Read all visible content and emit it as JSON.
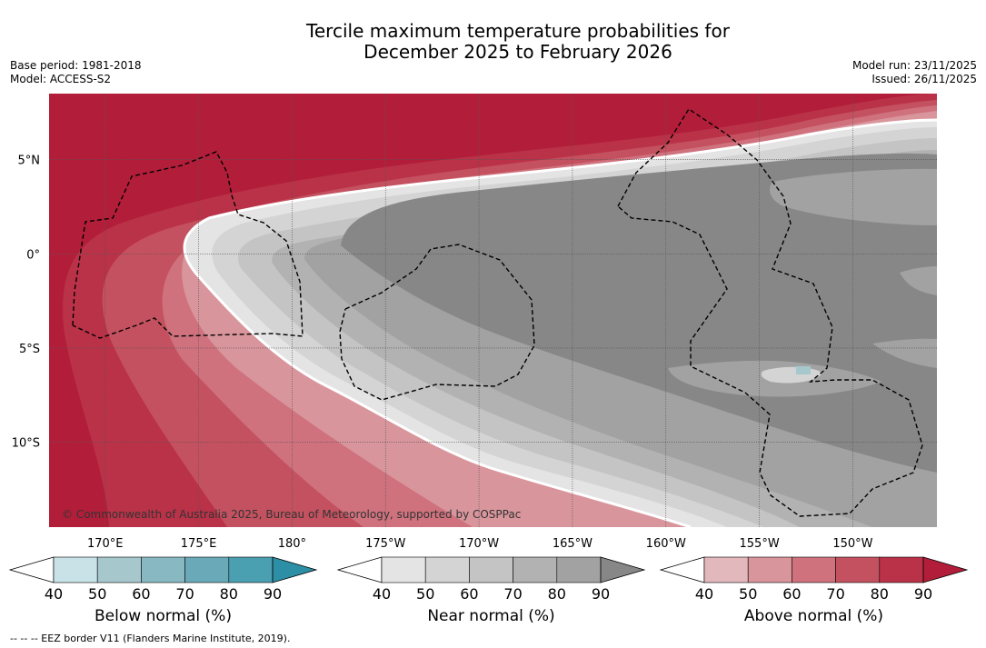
{
  "header": {
    "title_line1": "Tercile maximum temperature probabilities for",
    "title_line2": "December 2025 to February 2026",
    "base_period": "Base period: 1981-2018",
    "model": "Model: ACCESS-S2",
    "model_run": "Model run: 23/11/2025",
    "issued": "Issued: 26/11/2025"
  },
  "map": {
    "copyright": "© Commonwealth of Australia 2025, Bureau of Meteorology, supported by COSPPac"
  },
  "chart_data": {
    "type": "heatmap",
    "title": "Tercile maximum temperature probabilities for December 2025 to February 2026",
    "lat_ticks": [
      "5°N",
      "0°",
      "5°S",
      "10°S"
    ],
    "lon_ticks": [
      "170°E",
      "175°E",
      "180°",
      "175°W",
      "170°W",
      "165°W",
      "160°W",
      "155°W",
      "150°W"
    ],
    "lat_range": [
      -14.5,
      8.5
    ],
    "lon_range": [
      167,
      214.5
    ],
    "colorbars": [
      {
        "label": "Below normal (%)",
        "ticks": [
          "40",
          "50",
          "60",
          "70",
          "80",
          "90"
        ],
        "colors": [
          "#c9e2e8",
          "#a6c8cd",
          "#88b8c2",
          "#6aaab8",
          "#4a9fb0",
          "#2d8fa6"
        ]
      },
      {
        "label": "Near normal (%)",
        "ticks": [
          "40",
          "50",
          "60",
          "70",
          "80",
          "90"
        ],
        "colors": [
          "#e4e4e4",
          "#d4d4d4",
          "#c4c4c4",
          "#b2b2b2",
          "#a2a2a2",
          "#878787"
        ]
      },
      {
        "label": "Above normal (%)",
        "ticks": [
          "40",
          "50",
          "60",
          "70",
          "80",
          "90"
        ],
        "colors": [
          "#e2b8bd",
          "#d9959c",
          "#cf727e",
          "#c4515f",
          "#ba3248",
          "#b21e3a"
        ]
      }
    ],
    "fill_colors": {
      "above_90": "#b21e3a",
      "above_80": "#ba3248",
      "above_70": "#c4515f",
      "above_60": "#cf727e",
      "above_50": "#d9959c",
      "near_40": "#e4e4e4",
      "near_50": "#d4d4d4",
      "near_60": "#c4c4c4",
      "near_70": "#b2b2b2",
      "near_80": "#a2a2a2",
      "near_90": "#878787",
      "below_50": "#a6c8cd"
    }
  },
  "footer": {
    "eez_legend": "--  --  -- EEZ border V11 (Flanders Marine Institute, 2019)."
  }
}
